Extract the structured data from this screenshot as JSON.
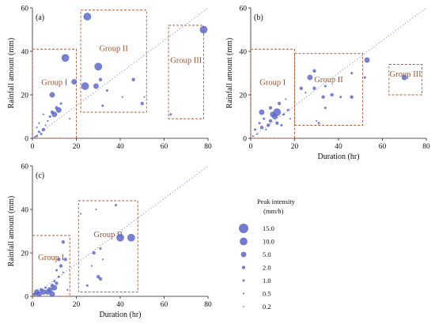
{
  "colors": {
    "point": "#5964c8",
    "box": "#b05a3c",
    "group_text": "#a0522d",
    "reference_line": "#7b86d6"
  },
  "chart_data": [
    {
      "type": "scatter",
      "panel_label": "(a)",
      "xlabel": "",
      "ylabel": "Rainfall amount (mm)",
      "xlim": [
        0,
        80
      ],
      "ylim": [
        0,
        60
      ],
      "xticks": [
        0,
        20,
        40,
        60,
        80
      ],
      "yticks": [
        0,
        20,
        40,
        60
      ],
      "x_tick_labels": [
        "0",
        "20",
        "40",
        "60",
        "80"
      ],
      "y_tick_labels": [
        "0",
        "20",
        "40",
        "60"
      ],
      "size_encoding": "peak intensity (mm/h)",
      "reference_line": {
        "x": [
          0,
          80
        ],
        "y": [
          0,
          60
        ]
      },
      "groups": [
        {
          "label": "Group I",
          "x": [
            0,
            20
          ],
          "y": [
            0,
            41
          ]
        },
        {
          "label": "Group II",
          "x": [
            22,
            52
          ],
          "y": [
            12,
            59
          ]
        },
        {
          "label": "Group III",
          "x": [
            62,
            78
          ],
          "y": [
            9,
            52
          ]
        }
      ],
      "points": [
        [
          1,
          0.5,
          0.5
        ],
        [
          2,
          1,
          1
        ],
        [
          3,
          3,
          1
        ],
        [
          2,
          5,
          0.5
        ],
        [
          4,
          2,
          1
        ],
        [
          5,
          4,
          2
        ],
        [
          3,
          7,
          0.5
        ],
        [
          6,
          6,
          0.5
        ],
        [
          5,
          11,
          0.5
        ],
        [
          7,
          8,
          0.5
        ],
        [
          8,
          10,
          1
        ],
        [
          9,
          12,
          2
        ],
        [
          10,
          11,
          5
        ],
        [
          11,
          14,
          2
        ],
        [
          12,
          13,
          5
        ],
        [
          13,
          16,
          1
        ],
        [
          9,
          20,
          5
        ],
        [
          15,
          37,
          10
        ],
        [
          19,
          26,
          5
        ],
        [
          17,
          9,
          0.5
        ],
        [
          25,
          56,
          10
        ],
        [
          24,
          24,
          10
        ],
        [
          29,
          24,
          5
        ],
        [
          30,
          33,
          10
        ],
        [
          31,
          27,
          2
        ],
        [
          32,
          15,
          1
        ],
        [
          34,
          22,
          1
        ],
        [
          41,
          19,
          0.5
        ],
        [
          46,
          27,
          2
        ],
        [
          50,
          16,
          2
        ],
        [
          51,
          19,
          0.5
        ],
        [
          63,
          11,
          1
        ],
        [
          78,
          50,
          10
        ]
      ]
    },
    {
      "type": "scatter",
      "panel_label": "(b)",
      "xlabel": "Duration (hr)",
      "ylabel": "Rainfall amount (mm)",
      "xlim": [
        0,
        80
      ],
      "ylim": [
        0,
        60
      ],
      "xticks": [
        0,
        20,
        40,
        60,
        80
      ],
      "yticks": [
        0,
        20,
        40,
        60
      ],
      "x_tick_labels": [
        "0",
        "20",
        "40",
        "60",
        "80"
      ],
      "y_tick_labels": [
        "0",
        "20",
        "40",
        "60"
      ],
      "size_encoding": "peak intensity (mm/h)",
      "reference_line": {
        "x": [
          0,
          80
        ],
        "y": [
          0,
          60
        ]
      },
      "groups": [
        {
          "label": "Group I",
          "x": [
            0,
            20
          ],
          "y": [
            0,
            41
          ]
        },
        {
          "label": "Group II",
          "x": [
            20,
            51
          ],
          "y": [
            6,
            39
          ]
        },
        {
          "label": "Group III",
          "x": [
            63,
            78
          ],
          "y": [
            20,
            34
          ]
        }
      ],
      "points": [
        [
          1,
          1,
          0.5
        ],
        [
          2,
          4,
          1
        ],
        [
          3,
          2,
          0.5
        ],
        [
          4,
          7,
          1
        ],
        [
          5,
          5,
          2
        ],
        [
          5,
          12,
          5
        ],
        [
          6,
          9,
          1
        ],
        [
          7,
          4,
          0.5
        ],
        [
          8,
          6,
          2
        ],
        [
          9,
          8,
          2
        ],
        [
          9,
          14,
          2
        ],
        [
          10,
          11,
          5
        ],
        [
          11,
          10,
          5
        ],
        [
          12,
          12,
          10
        ],
        [
          12,
          7,
          2
        ],
        [
          13,
          16,
          2
        ],
        [
          14,
          6,
          1
        ],
        [
          15,
          11,
          1
        ],
        [
          16,
          18,
          0.5
        ],
        [
          17,
          13,
          1
        ],
        [
          18,
          9,
          0.5
        ],
        [
          23,
          23,
          2
        ],
        [
          25,
          21,
          0.5
        ],
        [
          27,
          28,
          5
        ],
        [
          29,
          31,
          2
        ],
        [
          29,
          23,
          2
        ],
        [
          30,
          8,
          0.5
        ],
        [
          31,
          7,
          1
        ],
        [
          33,
          19,
          2
        ],
        [
          34,
          14,
          1
        ],
        [
          34,
          24,
          1
        ],
        [
          37,
          20,
          2
        ],
        [
          41,
          19,
          1
        ],
        [
          46,
          19,
          2
        ],
        [
          46,
          30,
          1
        ],
        [
          52,
          28,
          1
        ],
        [
          53,
          36,
          5
        ],
        [
          70,
          28,
          5
        ]
      ]
    },
    {
      "type": "scatter",
      "panel_label": "(c)",
      "xlabel": "Duration (hr)",
      "ylabel": "Rainfall amount (mm)",
      "xlim": [
        0,
        80
      ],
      "ylim": [
        0,
        60
      ],
      "xticks": [
        0,
        20,
        40,
        60,
        80
      ],
      "yticks": [
        0,
        20,
        40,
        60
      ],
      "x_tick_labels": [
        "0",
        "20",
        "40",
        "60",
        "80"
      ],
      "y_tick_labels": [
        "0",
        "20",
        "40",
        "60"
      ],
      "size_encoding": "peak intensity (mm/h)",
      "reference_line": {
        "x": [
          0,
          80
        ],
        "y": [
          0,
          60
        ]
      },
      "groups": [
        {
          "label": "Group I",
          "x": [
            0,
            17
          ],
          "y": [
            0,
            28
          ]
        },
        {
          "label": "Group II",
          "x": [
            21,
            48
          ],
          "y": [
            2,
            44
          ]
        }
      ],
      "points": [
        [
          1,
          1,
          2
        ],
        [
          2,
          2,
          5
        ],
        [
          3,
          1,
          5
        ],
        [
          4,
          3,
          2
        ],
        [
          5,
          2,
          5
        ],
        [
          6,
          4,
          1
        ],
        [
          7,
          2,
          5
        ],
        [
          8,
          3,
          5
        ],
        [
          9,
          5,
          2
        ],
        [
          9,
          1,
          5
        ],
        [
          10,
          4,
          5
        ],
        [
          10,
          7,
          1
        ],
        [
          11,
          6,
          2
        ],
        [
          12,
          9,
          1
        ],
        [
          11,
          12,
          1
        ],
        [
          13,
          14,
          2
        ],
        [
          14,
          11,
          0.5
        ],
        [
          12,
          17,
          2
        ],
        [
          15,
          17,
          2
        ],
        [
          14,
          25,
          2
        ],
        [
          16,
          3,
          0.5
        ],
        [
          22,
          38,
          0.5
        ],
        [
          25,
          5,
          1
        ],
        [
          27,
          14,
          0.5
        ],
        [
          28,
          20,
          2
        ],
        [
          29,
          40,
          0.5
        ],
        [
          30,
          9,
          2
        ],
        [
          31,
          8,
          2
        ],
        [
          31,
          22,
          1
        ],
        [
          32,
          17,
          0.5
        ],
        [
          38,
          42,
          1
        ],
        [
          40,
          27,
          10
        ],
        [
          45,
          27,
          10
        ]
      ]
    }
  ],
  "legend": {
    "title_line1": "Peak intensity",
    "title_line2": "(mm/h)",
    "entries": [
      {
        "label": "15.0",
        "value": 15
      },
      {
        "label": "10.0",
        "value": 10
      },
      {
        "label": "5.0",
        "value": 5
      },
      {
        "label": "2.0",
        "value": 2
      },
      {
        "label": "1.0",
        "value": 1
      },
      {
        "label": "0.5",
        "value": 0.5
      },
      {
        "label": "0.2",
        "value": 0.2
      }
    ]
  }
}
